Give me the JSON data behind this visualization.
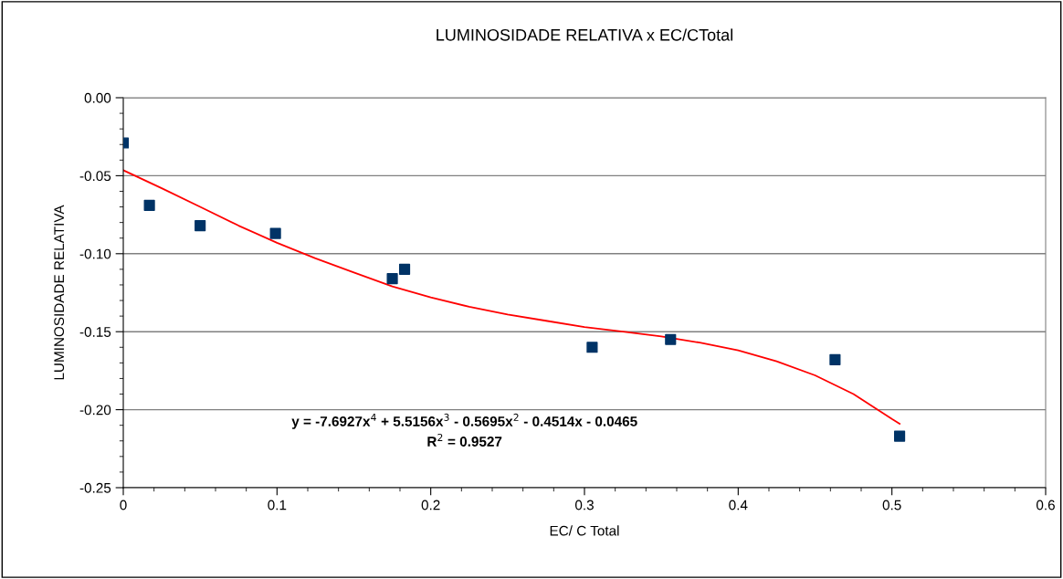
{
  "chart_data": {
    "type": "scatter",
    "title": "LUMINOSIDADE RELATIVA x EC/CTotal",
    "xlabel": "EC/ C Total",
    "ylabel": "LUMINOSIDADE RELATIVA",
    "xlim": [
      0,
      0.6
    ],
    "xticks": [
      0,
      0.1,
      0.2,
      0.3,
      0.4,
      0.5,
      0.6
    ],
    "ylim": [
      -0.25,
      0
    ],
    "yticks": [
      {
        "value": -0.25,
        "label": "-0.25"
      },
      {
        "value": -0.2,
        "label": "-0.20"
      },
      {
        "value": -0.15,
        "label": "-0.15"
      },
      {
        "value": -0.1,
        "label": "-0.10"
      },
      {
        "value": -0.05,
        "label": "-0.05"
      },
      {
        "value": 0,
        "label": "0.00"
      }
    ],
    "grid": "y",
    "series": [
      {
        "type": "scatter",
        "color": "#003366",
        "marker": "square",
        "x": [
          0,
          0.017,
          0.05,
          0.099,
          0.175,
          0.183,
          0.305,
          0.356,
          0.463,
          0.505
        ],
        "values": [
          -0.029,
          -0.069,
          -0.082,
          -0.087,
          -0.116,
          -0.11,
          -0.16,
          -0.155,
          -0.168,
          -0.217
        ]
      },
      {
        "type": "line",
        "color": "#ff0000",
        "marker": "none",
        "x": [
          0,
          0.025,
          0.05,
          0.075,
          0.1,
          0.125,
          0.15,
          0.175,
          0.2,
          0.225,
          0.25,
          0.275,
          0.3,
          0.325,
          0.35,
          0.375,
          0.4,
          0.425,
          0.45,
          0.475,
          0.5,
          0.505
        ],
        "values": [
          -0.0465,
          -0.058,
          -0.07,
          -0.082,
          -0.093,
          -0.103,
          -0.112,
          -0.121,
          -0.128,
          -0.134,
          -0.139,
          -0.143,
          -0.147,
          -0.15,
          -0.153,
          -0.157,
          -0.162,
          -0.169,
          -0.178,
          -0.19,
          -0.206,
          -0.209
        ]
      }
    ],
    "annotations": [
      "y = -7.6927x$^{4}$ + 5.5156x$^{3}$ - 0.5695x$^{2}$ - 0.4514x - 0.0465",
      "R$^{2}$ = 0.9527"
    ]
  }
}
